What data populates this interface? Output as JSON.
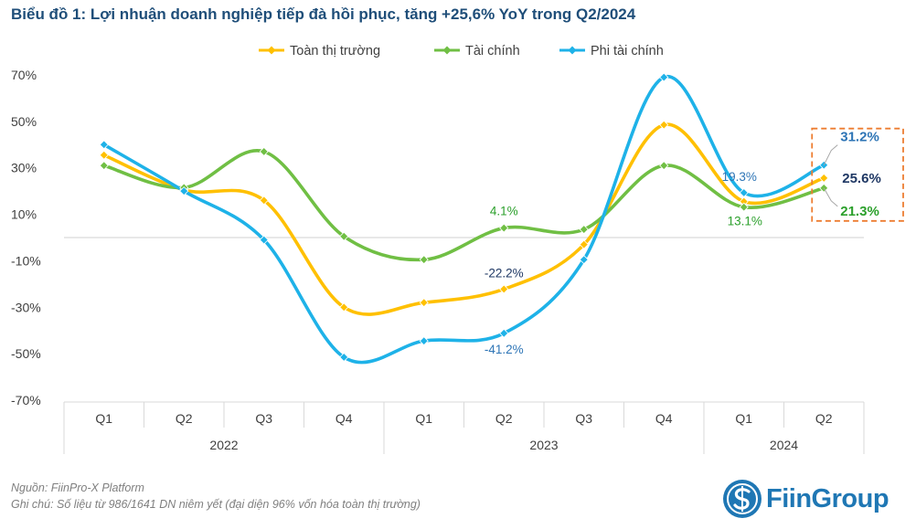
{
  "title": "Biểu đồ 1: Lợi nhuận doanh nghiệp tiếp đà hồi phục, tăng +25,6% YoY trong Q2/2024",
  "footer": {
    "source": "Nguồn: FiinPro-X Platform",
    "note": "Ghi chú: Số liệu từ 986/1641 DN niêm yết (đại diện 96% vốn hóa toàn thị trường)"
  },
  "logo": {
    "text": "FiinGroup",
    "icon": "fiingroup-logo-icon"
  },
  "colors": {
    "toan": "#ffc000",
    "taichinh": "#70bf44",
    "phi": "#1eb2e8",
    "highlight": "#ed7d31"
  },
  "chart_data": {
    "type": "line",
    "categories": [
      "Q1",
      "Q2",
      "Q3",
      "Q4",
      "Q1",
      "Q2",
      "Q3",
      "Q4",
      "Q1",
      "Q2"
    ],
    "years": [
      {
        "label": "2022",
        "span": [
          0,
          3
        ]
      },
      {
        "label": "2023",
        "span": [
          4,
          7
        ]
      },
      {
        "label": "2024",
        "span": [
          8,
          9
        ]
      }
    ],
    "ylim": [
      -70,
      70
    ],
    "yticks": [
      -70,
      -50,
      -30,
      -10,
      10,
      30,
      50,
      70
    ],
    "ytick_labels": [
      "-70%",
      "-50%",
      "-30%",
      "-10%",
      "10%",
      "30%",
      "50%",
      "70%"
    ],
    "legend_position": "top-center",
    "series": [
      {
        "name": "Toàn thị trường",
        "color": "#ffc000",
        "label_color": "#1f3864",
        "values": [
          35.5,
          20.5,
          16,
          -30,
          -28,
          -22.2,
          -3,
          48.5,
          15.5,
          25.6
        ]
      },
      {
        "name": "Tài chính",
        "color": "#70bf44",
        "label_color": "#2ca02c",
        "values": [
          31,
          21.5,
          37,
          0.5,
          -9.5,
          4.1,
          3.5,
          31,
          13.1,
          21.3
        ]
      },
      {
        "name": "Phi tài chính",
        "color": "#1eb2e8",
        "label_color": "#2e75b6",
        "values": [
          40,
          20,
          -1,
          -51.5,
          -44.5,
          -41.2,
          -9.5,
          69,
          19.3,
          31.2
        ]
      }
    ],
    "data_labels": [
      {
        "series": 1,
        "index": 5,
        "text": "4.1%",
        "bold": false
      },
      {
        "series": 0,
        "index": 5,
        "text": "-22.2%",
        "bold": false
      },
      {
        "series": 2,
        "index": 5,
        "text": "-41.2%",
        "bold": false
      },
      {
        "series": 2,
        "index": 8,
        "text": "19.3%",
        "bold": false
      },
      {
        "series": 1,
        "index": 8,
        "text": "13.1%",
        "bold": false
      },
      {
        "series": 2,
        "index": 9,
        "text": "31.2%",
        "bold": true
      },
      {
        "series": 0,
        "index": 9,
        "text": "25.6%",
        "bold": true
      },
      {
        "series": 1,
        "index": 9,
        "text": "21.3%",
        "bold": true
      }
    ]
  }
}
